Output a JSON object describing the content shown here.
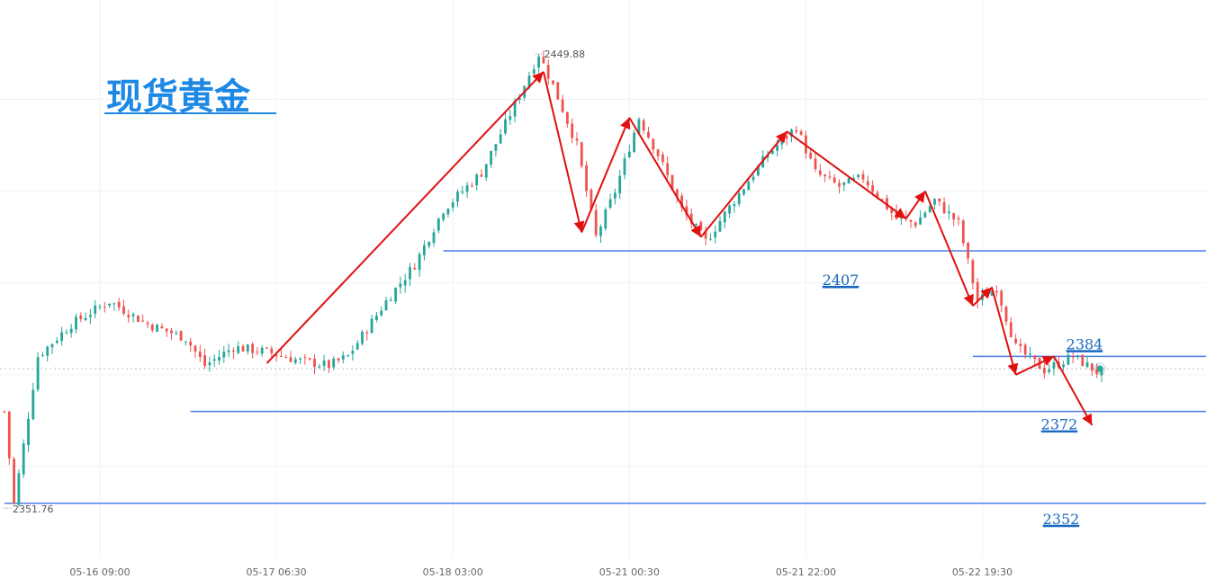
{
  "chart_data": {
    "type": "candlestick",
    "title": "现货黄金",
    "xlabel": "",
    "ylabel": "",
    "ylim": [
      2347,
      2455
    ],
    "grid": true,
    "legend": "none",
    "colors": {
      "up": "#26a69a",
      "down": "#ef5350",
      "level_line": "#4a7fe6",
      "arrow": "#e01010",
      "title": "#1e88e5",
      "level_label": "#1565c0",
      "current_dot": "#26a69a"
    },
    "x_ticks": [
      "05-16 09:00",
      "05-17 06:30",
      "05-18 03:00",
      "05-21 00:30",
      "05-21 22:00",
      "05-22 19:30"
    ],
    "high_label": "2449.88",
    "low_label": "2351.76",
    "current_price": 2381.3,
    "levels": [
      {
        "value": 2407,
        "label": "2407"
      },
      {
        "value": 2384,
        "label": "2384"
      },
      {
        "value": 2372,
        "label": "2372"
      },
      {
        "value": 2352,
        "label": "2352"
      }
    ],
    "price_path": [
      [
        0,
        2372
      ],
      [
        2,
        2351.76
      ],
      [
        7,
        2384
      ],
      [
        14,
        2391
      ],
      [
        22,
        2396
      ],
      [
        30,
        2391
      ],
      [
        38,
        2388
      ],
      [
        42,
        2382
      ],
      [
        48,
        2386
      ],
      [
        55,
        2385
      ],
      [
        62,
        2383
      ],
      [
        68,
        2382
      ],
      [
        72,
        2384
      ],
      [
        80,
        2396
      ],
      [
        86,
        2404
      ],
      [
        92,
        2416
      ],
      [
        100,
        2424
      ],
      [
        108,
        2441
      ],
      [
        112,
        2449.88
      ],
      [
        115,
        2443
      ],
      [
        120,
        2430
      ],
      [
        124,
        2410
      ],
      [
        128,
        2420
      ],
      [
        133,
        2436
      ],
      [
        137,
        2428
      ],
      [
        142,
        2416
      ],
      [
        147,
        2409
      ],
      [
        153,
        2418
      ],
      [
        160,
        2428
      ],
      [
        166,
        2434
      ],
      [
        170,
        2424
      ],
      [
        175,
        2421
      ],
      [
        180,
        2423
      ],
      [
        187,
        2414
      ],
      [
        191,
        2413
      ],
      [
        195,
        2418
      ],
      [
        200,
        2413
      ],
      [
        204,
        2396
      ],
      [
        208,
        2399
      ],
      [
        212,
        2386
      ],
      [
        218,
        2381
      ],
      [
        224,
        2384
      ],
      [
        230,
        2380
      ]
    ],
    "annotation_arrows": [
      [
        [
          55,
          2382.5
        ],
        [
          113,
          2446
        ]
      ],
      [
        [
          113,
          2446
        ],
        [
          121,
          2411
        ]
      ],
      [
        [
          121,
          2411
        ],
        [
          131,
          2436
        ]
      ],
      [
        [
          131,
          2436
        ],
        [
          146,
          2410
        ]
      ],
      [
        [
          146,
          2410
        ],
        [
          164,
          2433
        ]
      ],
      [
        [
          164,
          2433
        ],
        [
          189,
          2414
        ]
      ],
      [
        [
          189,
          2414
        ],
        [
          193,
          2420
        ]
      ],
      [
        [
          193,
          2420
        ],
        [
          203,
          2395
        ]
      ],
      [
        [
          203,
          2395
        ],
        [
          207,
          2399
        ]
      ],
      [
        [
          207,
          2399
        ],
        [
          212,
          2380
        ]
      ],
      [
        [
          212,
          2380
        ],
        [
          220,
          2384
        ]
      ],
      [
        [
          220,
          2384
        ],
        [
          228,
          2369
        ]
      ]
    ],
    "level_segments": [
      {
        "level": 2407,
        "from": 92,
        "to": 245
      },
      {
        "level": 2384,
        "from": 203,
        "to": 245
      },
      {
        "level": 2372,
        "from": 39,
        "to": 245
      },
      {
        "level": 2352,
        "from": 0,
        "to": 245
      }
    ]
  }
}
